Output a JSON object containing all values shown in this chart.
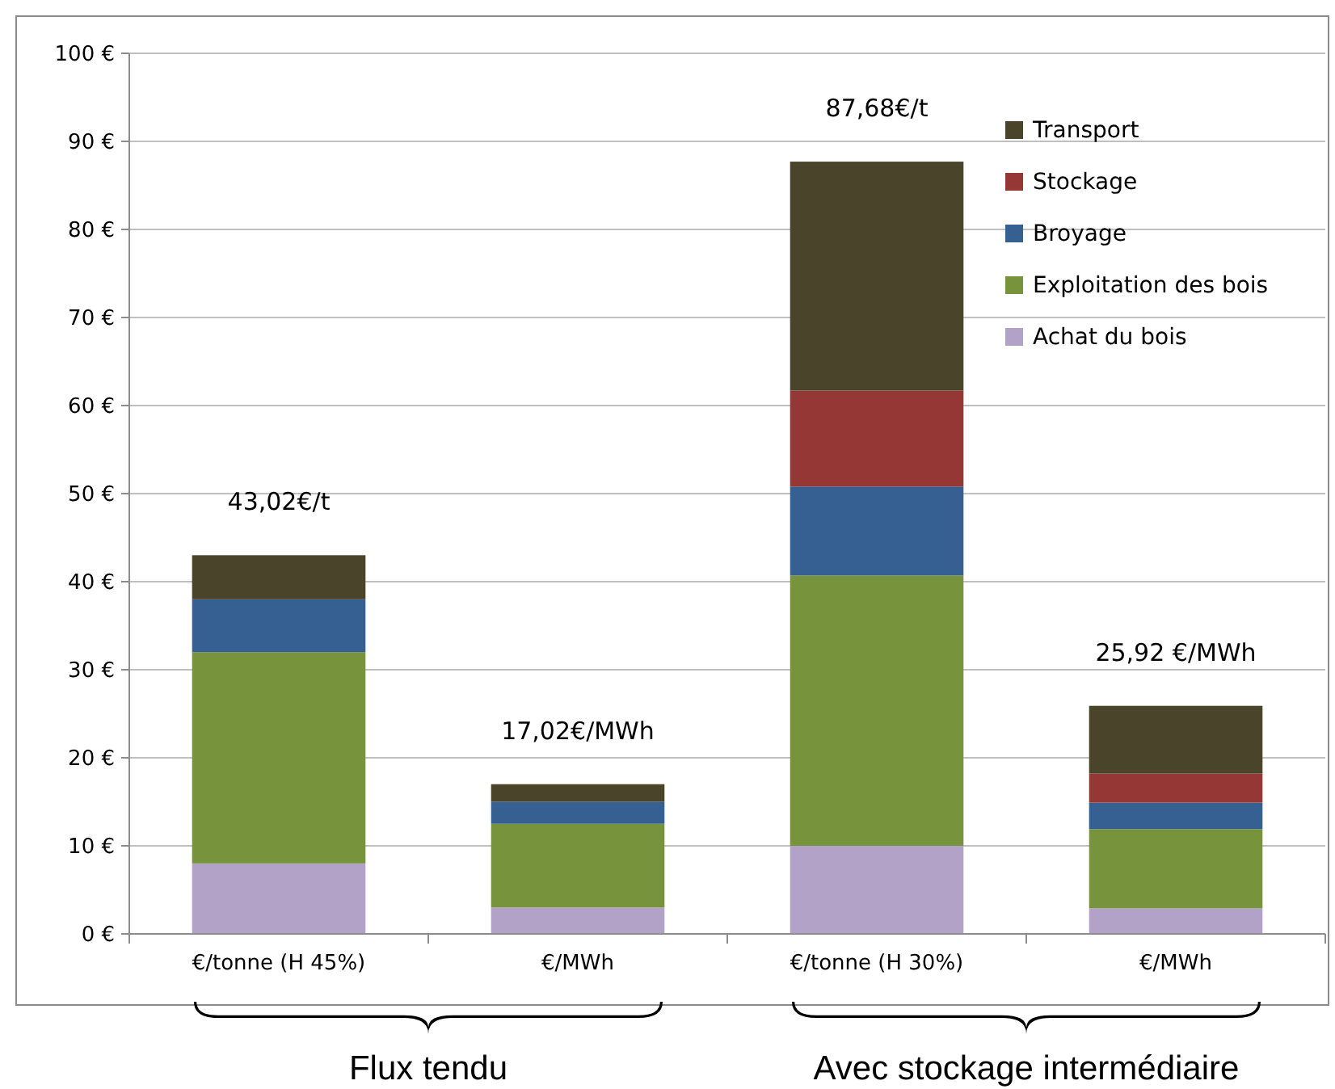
{
  "chart_data": {
    "type": "bar",
    "stacked": true,
    "categories": [
      "€/tonne (H 45%)",
      "€/MWh",
      "€/tonne (H 30%)",
      "€/MWh"
    ],
    "series": [
      {
        "name": "Achat du bois",
        "color": "#b3a2c7",
        "values": [
          8,
          3,
          10,
          2.9
        ]
      },
      {
        "name": "Exploitation des bois",
        "color": "#77933c",
        "values": [
          24,
          9.5,
          30.7,
          9
        ]
      },
      {
        "name": "Broyage",
        "color": "#376092",
        "values": [
          6,
          2.5,
          10.1,
          3
        ]
      },
      {
        "name": "Stockage",
        "color": "#953735",
        "values": [
          0,
          0,
          10.9,
          3.3
        ]
      },
      {
        "name": "Transport",
        "color": "#4a452a",
        "values": [
          5,
          2,
          26,
          7.7
        ]
      }
    ],
    "totals": [
      "43,02€/t",
      "17,02€/MWh",
      "87,68€/t",
      "25,92 €/MWh"
    ],
    "ylim": [
      0,
      100
    ],
    "yticks": [
      {
        "value": 0,
        "label": "0 €"
      },
      {
        "value": 10,
        "label": "10 €"
      },
      {
        "value": 20,
        "label": "20 €"
      },
      {
        "value": 30,
        "label": "30 €"
      },
      {
        "value": 40,
        "label": "40 €"
      },
      {
        "value": 50,
        "label": "50 €"
      },
      {
        "value": 60,
        "label": "60 €"
      },
      {
        "value": 70,
        "label": "70 €"
      },
      {
        "value": 80,
        "label": "80 €"
      },
      {
        "value": 90,
        "label": "90 €"
      },
      {
        "value": 100,
        "label": "100 €"
      }
    ],
    "grid": "y",
    "legend": "top right",
    "annotations": [
      "Flux tendu",
      "Avec stockage intermédiaire"
    ]
  }
}
